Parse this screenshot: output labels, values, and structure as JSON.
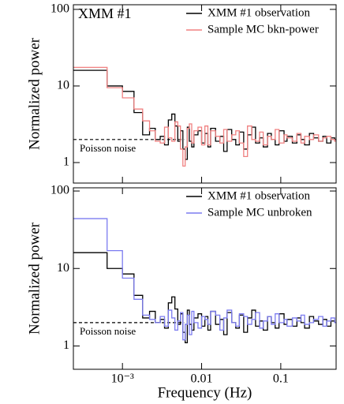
{
  "chart_data": [
    {
      "type": "line",
      "drawstyle": "steps-post",
      "ylabel": "Normalized power",
      "annotation": "XMM #1",
      "xscale": "log",
      "yscale": "log",
      "xlim": [
        0.00024,
        0.5
      ],
      "ylim": [
        0.54,
        115
      ],
      "xticks": [
        {
          "value": 0.001,
          "label": "10⁻³"
        },
        0.01,
        0.1
      ],
      "yticks": [
        1,
        10,
        100
      ],
      "show_xticklabels": false,
      "legend": "upper right",
      "reference_line": {
        "y": 2,
        "x_end": 0.006,
        "label": "Poisson noise"
      },
      "x": [
        0.00024,
        0.00064,
        0.001,
        0.0014,
        0.0018,
        0.0022,
        0.0026,
        0.003,
        0.0034,
        0.0038,
        0.0042,
        0.0046,
        0.005,
        0.0054,
        0.0058,
        0.0062,
        0.0066,
        0.007,
        0.0075,
        0.008,
        0.009,
        0.01,
        0.011,
        0.012,
        0.013,
        0.015,
        0.017,
        0.019,
        0.021,
        0.024,
        0.027,
        0.03,
        0.034,
        0.038,
        0.043,
        0.048,
        0.054,
        0.06,
        0.068,
        0.076,
        0.085,
        0.095,
        0.11,
        0.12,
        0.14,
        0.16,
        0.18,
        0.2,
        0.23,
        0.26,
        0.3,
        0.34,
        0.38,
        0.43,
        0.48
      ],
      "series": [
        {
          "name": "XMM #1 observation",
          "color": "#000000",
          "values": [
            16,
            10,
            8.5,
            4.5,
            2.3,
            2.8,
            2.0,
            2.2,
            1.7,
            3.6,
            4.3,
            3.0,
            1.9,
            2.6,
            1.5,
            1.1,
            2.9,
            1.9,
            1.6,
            2.3,
            2.6,
            1.8,
            2.4,
            1.6,
            2.8,
            1.9,
            2.2,
            1.4,
            2.7,
            2.0,
            1.7,
            2.5,
            1.5,
            2.3,
            2.9,
            1.8,
            2.1,
            1.6,
            2.4,
            2.0,
            1.7,
            2.6,
            1.9,
            2.2,
            1.8,
            2.3,
            2.0,
            1.7,
            2.4,
            2.1,
            1.9,
            2.2,
            1.8,
            2.1,
            2.0
          ]
        },
        {
          "name": "Sample MC bkn-power",
          "color": "#f08080",
          "values": [
            17.5,
            9.5,
            7,
            5,
            3.5,
            2.6,
            1.9,
            1.8,
            2.9,
            2.1,
            1.9,
            3.4,
            3.0,
            1.5,
            0.9,
            1.6,
            2.8,
            3.2,
            1.8,
            2.6,
            2.9,
            1.7,
            3.0,
            1.7,
            2.6,
            2.2,
            1.8,
            2.7,
            1.9,
            2.3,
            2.6,
            1.8,
            1.2,
            3.0,
            2.0,
            1.9,
            2.5,
            1.7,
            2.2,
            2.0,
            2.7,
            1.8,
            2.3,
            2.1,
            1.9,
            2.4,
            1.8,
            2.2,
            2.0,
            2.3,
            1.9,
            2.1,
            2.2,
            2.0,
            1.9
          ]
        }
      ]
    },
    {
      "type": "line",
      "drawstyle": "steps-post",
      "ylabel": "Normalized power",
      "xlabel": "Frequency (Hz)",
      "xscale": "log",
      "yscale": "log",
      "xlim": [
        0.00024,
        0.5
      ],
      "ylim": [
        0.5,
        110
      ],
      "xticks": [
        {
          "value": 0.001,
          "label": "10⁻³"
        },
        0.01,
        0.1
      ],
      "yticks": [
        1,
        10,
        100
      ],
      "show_xticklabels": true,
      "legend": "upper right",
      "reference_line": {
        "y": 2,
        "x_end": 0.006,
        "label": "Poisson noise"
      },
      "x": [
        0.00024,
        0.00064,
        0.001,
        0.0014,
        0.0018,
        0.0022,
        0.0026,
        0.003,
        0.0034,
        0.0038,
        0.0042,
        0.0046,
        0.005,
        0.0054,
        0.0058,
        0.0062,
        0.0066,
        0.007,
        0.0075,
        0.008,
        0.009,
        0.01,
        0.011,
        0.012,
        0.013,
        0.015,
        0.017,
        0.019,
        0.021,
        0.024,
        0.027,
        0.03,
        0.034,
        0.038,
        0.043,
        0.048,
        0.054,
        0.06,
        0.068,
        0.076,
        0.085,
        0.095,
        0.11,
        0.12,
        0.14,
        0.16,
        0.18,
        0.2,
        0.23,
        0.26,
        0.3,
        0.34,
        0.38,
        0.43,
        0.48
      ],
      "series": [
        {
          "name": "XMM #1 observation",
          "color": "#000000",
          "values": [
            16,
            10,
            8.5,
            4.5,
            2.3,
            2.8,
            2.0,
            2.2,
            1.7,
            3.6,
            4.3,
            3.0,
            1.9,
            2.6,
            1.5,
            1.1,
            2.9,
            1.9,
            1.6,
            2.3,
            2.6,
            1.8,
            2.4,
            1.6,
            2.8,
            1.9,
            2.2,
            1.4,
            2.7,
            2.0,
            1.7,
            2.5,
            1.5,
            2.3,
            2.9,
            1.8,
            2.1,
            1.6,
            2.4,
            2.0,
            1.7,
            2.6,
            1.9,
            2.2,
            1.8,
            2.3,
            2.0,
            1.7,
            2.4,
            2.1,
            1.9,
            2.2,
            1.8,
            2.1,
            2.0
          ]
        },
        {
          "name": "Sample MC unbroken",
          "color": "#7b7bf0",
          "values": [
            44,
            17,
            7.5,
            4,
            2.5,
            2.2,
            2.0,
            2.4,
            1.8,
            2.9,
            2.3,
            1.6,
            2.1,
            2.7,
            1.2,
            1.9,
            2.5,
            1.4,
            2.8,
            2.0,
            1.7,
            2.4,
            2.2,
            1.9,
            2.8,
            2.5,
            1.6,
            2.3,
            2.9,
            2.0,
            1.8,
            2.6,
            2.4,
            1.9,
            2.2,
            2.7,
            1.7,
            2.1,
            2.4,
            1.9,
            2.6,
            2.0,
            2.2,
            1.8,
            2.3,
            2.1,
            2.5,
            1.9,
            2.0,
            2.2,
            2.4,
            1.8,
            2.1,
            2.3,
            2.0
          ]
        }
      ]
    }
  ]
}
